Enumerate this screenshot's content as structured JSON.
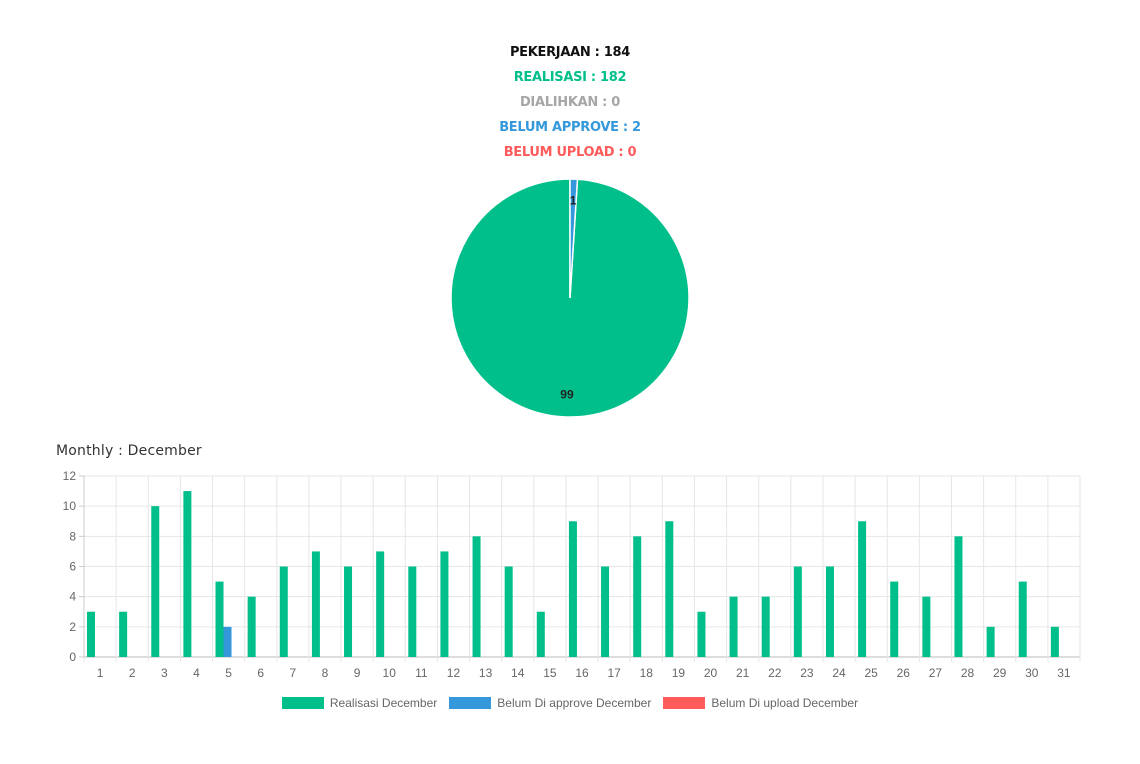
{
  "summary": {
    "pekerjaan": "PEKERJAAN : 184",
    "realisasi": "REALISASI : 182",
    "dialihkan": "DIALIHKAN : 0",
    "belum_approve": "BELUM APPROVE : 2",
    "belum_upload": "BELUM UPLOAD : 0"
  },
  "colors": {
    "green": "#00bf8a",
    "blue": "#3498db",
    "red": "#ff5b5b",
    "gray": "#a6a6a6",
    "black": "#111111"
  },
  "monthly_title": "Monthly : December",
  "chart_data": [
    {
      "type": "pie",
      "slices": [
        {
          "label": "Realisasi",
          "value": 99,
          "color": "#00bf8a"
        },
        {
          "label": "Belum Approve",
          "value": 1,
          "color": "#3498db"
        }
      ]
    },
    {
      "type": "bar",
      "categories": [
        "1",
        "2",
        "3",
        "4",
        "5",
        "6",
        "7",
        "8",
        "9",
        "10",
        "11",
        "12",
        "13",
        "14",
        "15",
        "16",
        "17",
        "18",
        "19",
        "20",
        "21",
        "22",
        "23",
        "24",
        "25",
        "26",
        "27",
        "28",
        "29",
        "30",
        "31"
      ],
      "series": [
        {
          "name": "Realisasi December",
          "color": "#00bf8a",
          "values": [
            3,
            3,
            10,
            11,
            5,
            4,
            6,
            7,
            6,
            7,
            6,
            7,
            8,
            6,
            3,
            9,
            6,
            8,
            9,
            3,
            4,
            4,
            6,
            6,
            9,
            5,
            4,
            8,
            2,
            5,
            2
          ]
        },
        {
          "name": "Belum Di approve December",
          "color": "#3498db",
          "values": [
            0,
            0,
            0,
            0,
            2,
            0,
            0,
            0,
            0,
            0,
            0,
            0,
            0,
            0,
            0,
            0,
            0,
            0,
            0,
            0,
            0,
            0,
            0,
            0,
            0,
            0,
            0,
            0,
            0,
            0,
            0
          ]
        },
        {
          "name": "Belum Di upload December",
          "color": "#ff5b5b",
          "values": [
            0,
            0,
            0,
            0,
            0,
            0,
            0,
            0,
            0,
            0,
            0,
            0,
            0,
            0,
            0,
            0,
            0,
            0,
            0,
            0,
            0,
            0,
            0,
            0,
            0,
            0,
            0,
            0,
            0,
            0,
            0
          ]
        }
      ],
      "ylim": [
        0,
        12
      ],
      "yticks": [
        "0",
        "2",
        "4",
        "6",
        "8",
        "10",
        "12"
      ],
      "grid": true,
      "legend": "bottom"
    }
  ]
}
